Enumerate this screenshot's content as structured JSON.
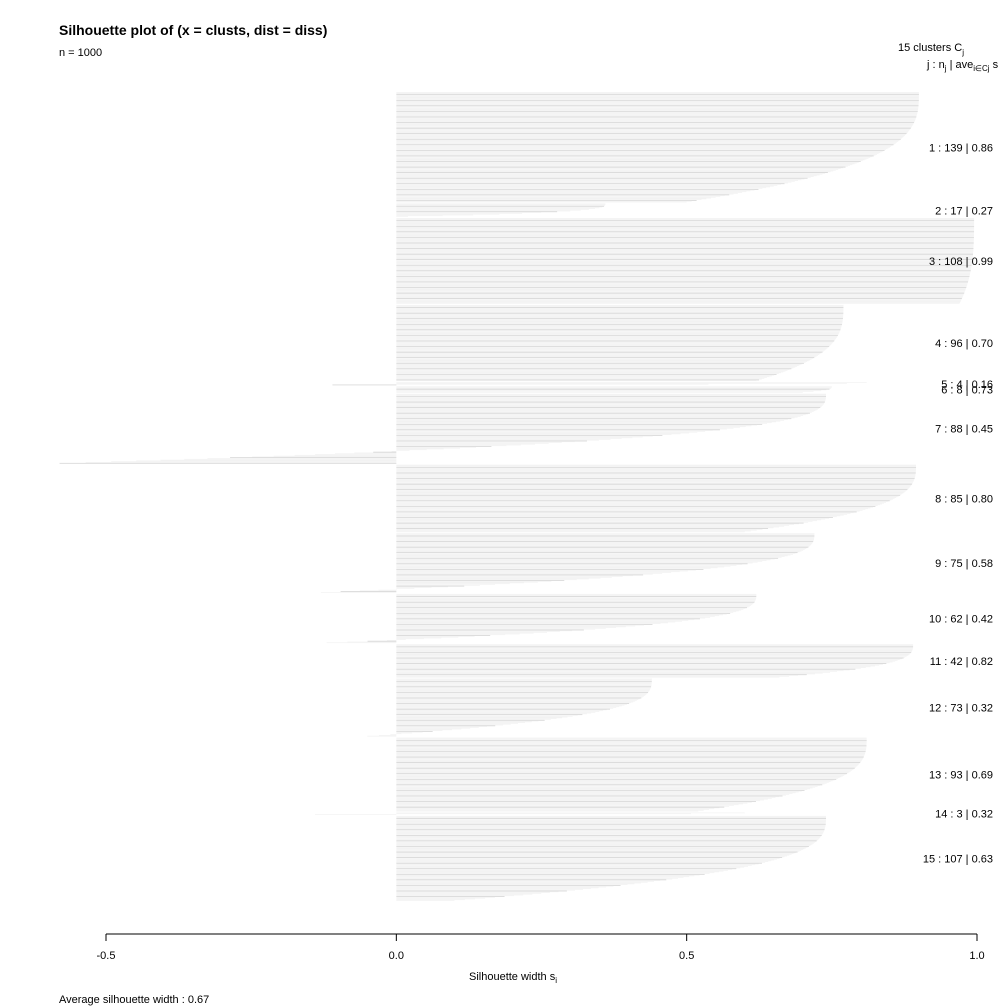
{
  "chart_data": {
    "type": "bar",
    "orientation": "horizontal",
    "title": "Silhouette plot of (x = clusts, dist = diss)",
    "subtitle": "n = 1000",
    "legend_header_line1": "15  clusters  C",
    "legend_header_sub1": "j",
    "legend_header_line2_a": "j :  n",
    "legend_header_line2_sub_a": "j",
    "legend_header_line2_b": " | ave",
    "legend_header_line2_sub_b": "i∈Cj",
    "legend_header_line2_c": "  s",
    "xlabel": "Silhouette width s",
    "xlabel_sub": "i",
    "footer": "Average silhouette width :  0.67",
    "xlim": [
      -0.5,
      1.0
    ],
    "xticks": [
      {
        "value": -0.5,
        "label": "-0.5"
      },
      {
        "value": 0.0,
        "label": "0.0"
      },
      {
        "value": 0.5,
        "label": "0.5"
      },
      {
        "value": 1.0,
        "label": "1.0"
      }
    ],
    "total_n": 1000,
    "average_width": 0.67,
    "clusters": [
      {
        "id": 1,
        "n": 139,
        "ave": 0.86,
        "label": "1 :  139  |  0.86",
        "max": 0.9,
        "min": 0.5
      },
      {
        "id": 2,
        "n": 17,
        "ave": 0.27,
        "label": "2 :  17  |  0.27",
        "max": 0.36,
        "min": 0.02
      },
      {
        "id": 3,
        "n": 108,
        "ave": 0.99,
        "label": "3 :  108  |  0.99",
        "max": 0.995,
        "min": 0.97
      },
      {
        "id": 4,
        "n": 96,
        "ave": 0.7,
        "label": "4 :  96  |  0.70",
        "max": 0.77,
        "min": 0.62
      },
      {
        "id": 5,
        "n": 4,
        "ave": 0.16,
        "label": "5 :  4  |  0.16",
        "max": 0.81,
        "min": -0.11
      },
      {
        "id": 6,
        "n": 8,
        "ave": 0.73,
        "label": "6 :  8  |  0.73",
        "max": 0.75,
        "min": 0.7
      },
      {
        "id": 7,
        "n": 88,
        "ave": 0.45,
        "label": "7 :  88  |  0.45",
        "max": 0.74,
        "min": -0.58
      },
      {
        "id": 8,
        "n": 85,
        "ave": 0.8,
        "label": "8 :  85  |  0.80",
        "max": 0.895,
        "min": 0.6
      },
      {
        "id": 9,
        "n": 75,
        "ave": 0.58,
        "label": "9 :  75  |  0.58",
        "max": 0.72,
        "min": -0.13
      },
      {
        "id": 10,
        "n": 62,
        "ave": 0.42,
        "label": "10 :  62  |  0.42",
        "max": 0.62,
        "min": -0.12
      },
      {
        "id": 11,
        "n": 42,
        "ave": 0.82,
        "label": "11 :  42  |  0.82",
        "max": 0.89,
        "min": 0.66
      },
      {
        "id": 12,
        "n": 73,
        "ave": 0.32,
        "label": "12 :  73  |  0.32",
        "max": 0.44,
        "min": -0.05
      },
      {
        "id": 13,
        "n": 93,
        "ave": 0.69,
        "label": "13 :  93  |  0.69",
        "max": 0.81,
        "min": 0.52
      },
      {
        "id": 14,
        "n": 3,
        "ave": 0.32,
        "label": "14 :  3  |  0.32",
        "max": 0.6,
        "min": -0.14
      },
      {
        "id": 15,
        "n": 107,
        "ave": 0.63,
        "label": "15 :  107  |  0.63",
        "max": 0.74,
        "min": 0.1
      }
    ]
  }
}
